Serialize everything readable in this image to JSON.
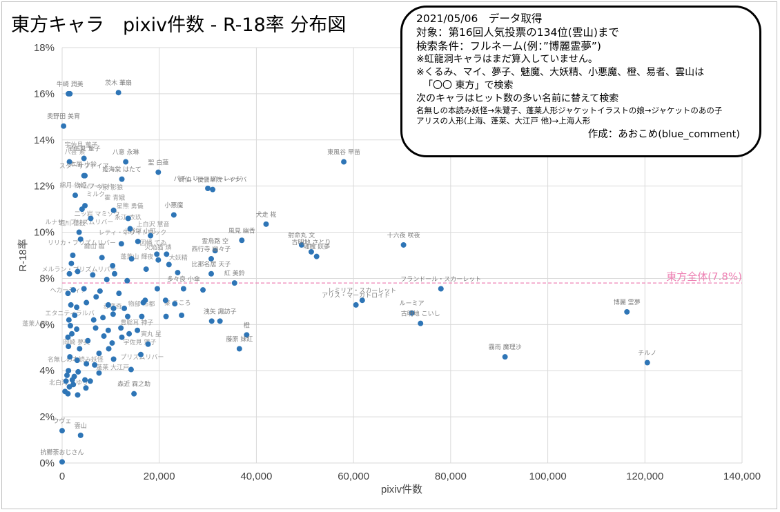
{
  "chart_data": {
    "type": "scatter",
    "title": "東方キャラ　pixiv件数 - R-18率 分布図",
    "xlabel": "pixiv件数",
    "ylabel": "R-18率",
    "xlim": [
      0,
      140000
    ],
    "ylim": [
      0,
      18
    ],
    "x_ticks": [
      "0",
      "20,000",
      "40,000",
      "60,000",
      "80,000",
      "100,000",
      "120,000",
      "140,000"
    ],
    "y_ticks": [
      "0%",
      "2%",
      "4%",
      "6%",
      "8%",
      "10%",
      "12%",
      "14%",
      "16%",
      "18%"
    ],
    "grid": true,
    "reference_line": {
      "label": "東方全体(7.8%)",
      "value": 7.8,
      "color": "#ee82b4"
    },
    "point_color": "#2e75b6",
    "labeled_points": [
      {
        "label": "牛崎 潤美",
        "x": 1600,
        "y": 16.0,
        "color": "#ff0000"
      },
      {
        "label": "茨木 華扇",
        "x": 11600,
        "y": 16.05,
        "color": "#ff0000"
      },
      {
        "label": "奥野田 美宵",
        "x": 300,
        "y": 14.6,
        "color": "#7f7f7f"
      },
      {
        "label": "東風谷 早苗",
        "x": 58000,
        "y": 13.05,
        "color": "#7f7f7f"
      },
      {
        "label": "聖 白蓮",
        "x": 19800,
        "y": 12.6,
        "color": "#7f7f7f"
      },
      {
        "label": "八意 永琳",
        "x": 13100,
        "y": 13.05,
        "color": "#7f7f7f"
      },
      {
        "label": "宇佐見 董子",
        "x": 4500,
        "y": 13.2,
        "color": "#7f7f7f"
      },
      {
        "label": "姫海棠 はたて",
        "x": 12300,
        "y": 12.3,
        "color": "#7f7f7f"
      },
      {
        "label": "スターサファイア",
        "x": 4500,
        "y": 12.45,
        "color": "#7f7f7f"
      },
      {
        "label": "鈴仙・優曇華院・イナバ",
        "x": 31000,
        "y": 11.85,
        "color": "#7f7f7f"
      },
      {
        "label": "パチュリー・ノーレッジ",
        "x": 30000,
        "y": 11.9,
        "color": "#7f7f7f"
      },
      {
        "label": "小悪魔",
        "x": 23000,
        "y": 10.75,
        "color": "#7f7f7f"
      },
      {
        "label": "犬走 椛",
        "x": 42000,
        "y": 10.35,
        "color": "#7f7f7f"
      },
      {
        "label": "十六夜 咲夜",
        "x": 70300,
        "y": 9.45,
        "color": "#7f7f7f"
      },
      {
        "label": "風見 幽香",
        "x": 37000,
        "y": 9.65,
        "color": "#7f7f7f"
      },
      {
        "label": "射命丸 文",
        "x": 49300,
        "y": 9.45,
        "color": "#7f7f7f"
      },
      {
        "label": "古明地 さとり",
        "x": 51300,
        "y": 9.15,
        "color": "#7f7f7f"
      },
      {
        "label": "魂魄 妖夢",
        "x": 52400,
        "y": 8.95,
        "color": "#7f7f7f"
      },
      {
        "label": "西行寺 幽々子",
        "x": 30700,
        "y": 8.85,
        "color": "#7f7f7f"
      },
      {
        "label": "霊烏路 空",
        "x": 31500,
        "y": 9.2,
        "color": "#7f7f7f"
      },
      {
        "label": "比那名居 天子",
        "x": 30700,
        "y": 8.2,
        "color": "#7f7f7f"
      },
      {
        "label": "紅 美鈴",
        "x": 35500,
        "y": 7.8,
        "color": "#7f7f7f"
      },
      {
        "label": "フランドール・スカーレット",
        "x": 78000,
        "y": 7.55,
        "color": "#7f7f7f"
      },
      {
        "label": "レミリア・スカーレット",
        "x": 61800,
        "y": 7.05,
        "color": "#7f7f7f"
      },
      {
        "label": "アリス・マーガトロイド",
        "x": 60500,
        "y": 6.85,
        "color": "#7f7f7f"
      },
      {
        "label": "ルーミア",
        "x": 72000,
        "y": 6.5,
        "color": "#7f7f7f"
      },
      {
        "label": "古明地 こいし",
        "x": 73800,
        "y": 6.05,
        "color": "#7f7f7f"
      },
      {
        "label": "博麗 霊夢",
        "x": 116300,
        "y": 6.55,
        "color": "#2e75b6"
      },
      {
        "label": "霧雨 魔理沙",
        "x": 91200,
        "y": 4.6,
        "color": "#7f7f7f"
      },
      {
        "label": "チルノ",
        "x": 120500,
        "y": 4.35,
        "color": "#2e75b6"
      },
      {
        "label": "橙",
        "x": 38000,
        "y": 5.55,
        "color": "#7f7f7f"
      },
      {
        "label": "藤原 妹紅",
        "x": 36500,
        "y": 4.95,
        "color": "#7f7f7f"
      },
      {
        "label": "洩矢 諏訪子",
        "x": 32500,
        "y": 6.15,
        "color": "#7f7f7f"
      },
      {
        "label": "多々良 小傘",
        "x": 25000,
        "y": 7.55,
        "color": "#7f7f7f"
      },
      {
        "label": "森近 霖之助",
        "x": 14800,
        "y": 3.0,
        "color": "#7f7f7f"
      },
      {
        "label": "ウヴェ",
        "x": 0,
        "y": 1.4,
        "color": "#7f7f7f"
      },
      {
        "label": "雲山",
        "x": 3800,
        "y": 1.2,
        "color": "#7f7f7f"
      },
      {
        "label": "抗鬱荼おじさん",
        "x": 0,
        "y": 0.05,
        "color": "#7f7f7f"
      }
    ],
    "unlabeled_points": [
      {
        "x": 1300,
        "y": 16.0
      },
      {
        "x": 1500,
        "y": 13.05
      },
      {
        "x": 4700,
        "y": 12.45
      },
      {
        "x": 2700,
        "y": 11.6
      },
      {
        "x": 4100,
        "y": 11.0
      },
      {
        "x": 4700,
        "y": 11.15
      },
      {
        "x": 10600,
        "y": 10.95
      },
      {
        "x": 14000,
        "y": 10.15
      },
      {
        "x": 13600,
        "y": 10.6
      },
      {
        "x": 18200,
        "y": 9.85
      },
      {
        "x": 3500,
        "y": 10.0
      },
      {
        "x": 3800,
        "y": 9.7
      },
      {
        "x": 5900,
        "y": 10.6
      },
      {
        "x": 12200,
        "y": 9.5
      },
      {
        "x": 15600,
        "y": 9.6
      },
      {
        "x": 19500,
        "y": 9.05
      },
      {
        "x": 21500,
        "y": 9.05
      },
      {
        "x": 19800,
        "y": 8.8
      },
      {
        "x": 22000,
        "y": 8.6
      },
      {
        "x": 23800,
        "y": 8.25
      },
      {
        "x": 17300,
        "y": 8.4
      },
      {
        "x": 14300,
        "y": 8.85
      },
      {
        "x": 8200,
        "y": 8.9
      },
      {
        "x": 10400,
        "y": 8.55
      },
      {
        "x": 2200,
        "y": 9.0
      },
      {
        "x": 1900,
        "y": 8.65
      },
      {
        "x": 3200,
        "y": 8.3
      },
      {
        "x": 1500,
        "y": 8.2
      },
      {
        "x": 6300,
        "y": 8.15
      },
      {
        "x": 10800,
        "y": 8.2
      },
      {
        "x": 9200,
        "y": 7.95
      },
      {
        "x": 13400,
        "y": 7.9
      },
      {
        "x": 2300,
        "y": 7.5
      },
      {
        "x": 1200,
        "y": 7.35
      },
      {
        "x": 4500,
        "y": 7.55
      },
      {
        "x": 7000,
        "y": 7.2
      },
      {
        "x": 7800,
        "y": 7.45
      },
      {
        "x": 11700,
        "y": 7.35
      },
      {
        "x": 17100,
        "y": 7.05
      },
      {
        "x": 19600,
        "y": 7.55
      },
      {
        "x": 21300,
        "y": 7.05
      },
      {
        "x": 23200,
        "y": 6.9
      },
      {
        "x": 29000,
        "y": 7.5
      },
      {
        "x": 1800,
        "y": 6.85
      },
      {
        "x": 3000,
        "y": 6.75
      },
      {
        "x": 5000,
        "y": 6.95
      },
      {
        "x": 9500,
        "y": 6.85
      },
      {
        "x": 10600,
        "y": 6.7
      },
      {
        "x": 12800,
        "y": 6.7
      },
      {
        "x": 16700,
        "y": 6.95
      },
      {
        "x": 1400,
        "y": 6.2
      },
      {
        "x": 2600,
        "y": 6.4
      },
      {
        "x": 6500,
        "y": 6.2
      },
      {
        "x": 8400,
        "y": 6.3
      },
      {
        "x": 10500,
        "y": 6.45
      },
      {
        "x": 13500,
        "y": 6.35
      },
      {
        "x": 16400,
        "y": 6.35
      },
      {
        "x": 21400,
        "y": 6.35
      },
      {
        "x": 24600,
        "y": 6.4
      },
      {
        "x": 30800,
        "y": 6.15
      },
      {
        "x": 1700,
        "y": 5.95
      },
      {
        "x": 3000,
        "y": 5.8
      },
      {
        "x": 6900,
        "y": 5.85
      },
      {
        "x": 9500,
        "y": 5.75
      },
      {
        "x": 12100,
        "y": 5.85
      },
      {
        "x": 15500,
        "y": 5.75
      },
      {
        "x": 1200,
        "y": 5.45
      },
      {
        "x": 2000,
        "y": 5.6
      },
      {
        "x": 5300,
        "y": 5.3
      },
      {
        "x": 8600,
        "y": 5.5
      },
      {
        "x": 10300,
        "y": 5.2
      },
      {
        "x": 12300,
        "y": 5.45
      },
      {
        "x": 13800,
        "y": 5.6
      },
      {
        "x": 17700,
        "y": 5.15
      },
      {
        "x": 1300,
        "y": 5.05
      },
      {
        "x": 3600,
        "y": 4.95
      },
      {
        "x": 7600,
        "y": 4.75
      },
      {
        "x": 9600,
        "y": 4.95
      },
      {
        "x": 10600,
        "y": 4.5
      },
      {
        "x": 16200,
        "y": 4.7
      },
      {
        "x": 1600,
        "y": 4.6
      },
      {
        "x": 3100,
        "y": 4.45
      },
      {
        "x": 5000,
        "y": 4.3
      },
      {
        "x": 6700,
        "y": 4.25
      },
      {
        "x": 14200,
        "y": 4.05
      },
      {
        "x": 1300,
        "y": 4.0
      },
      {
        "x": 2500,
        "y": 3.75
      },
      {
        "x": 3300,
        "y": 3.95
      },
      {
        "x": 4700,
        "y": 3.6
      },
      {
        "x": 5800,
        "y": 3.55
      },
      {
        "x": 7600,
        "y": 3.9
      },
      {
        "x": 800,
        "y": 3.55
      },
      {
        "x": 1500,
        "y": 3.3
      },
      {
        "x": 2300,
        "y": 3.4
      },
      {
        "x": 600,
        "y": 3.1
      },
      {
        "x": 1200,
        "y": 3.0
      },
      {
        "x": 3200,
        "y": 2.95
      },
      {
        "x": 4900,
        "y": 3.25
      },
      {
        "x": 2100,
        "y": 3.6
      },
      {
        "x": 1000,
        "y": 3.8
      }
    ],
    "faint_labels": [
      {
        "text": "宇佐見 菫子",
        "x": 500,
        "y": 13.7
      },
      {
        "text": "八雲 紫",
        "x": 500,
        "y": 13.4
      },
      {
        "text": "本居 小鈴",
        "x": 1600,
        "y": 12.85
      },
      {
        "text": "綿月 依姫",
        "x": -500,
        "y": 11.95
      },
      {
        "text": "ネムノ",
        "x": 3000,
        "y": 11.9
      },
      {
        "text": "ワールド",
        "x": 5300,
        "y": 11.9
      },
      {
        "text": "今泉 影狼",
        "x": 7000,
        "y": 11.85
      },
      {
        "text": "ミルク",
        "x": 5000,
        "y": 11.55
      },
      {
        "text": "霍 青娥",
        "x": 8700,
        "y": 11.4
      },
      {
        "text": "星熊 勇儀",
        "x": 11200,
        "y": 11.05
      },
      {
        "text": "二ッ岩 マミゾウ",
        "x": 2500,
        "y": 10.7
      },
      {
        "text": "永江 衣玖",
        "x": 10800,
        "y": 10.55
      },
      {
        "text": "ルナサ・プリズムリバー",
        "x": -3500,
        "y": 10.35
      },
      {
        "text": "堀川 雷鼓",
        "x": -700,
        "y": 10.3
      },
      {
        "text": "上白沢 慧音",
        "x": 15300,
        "y": 10.25
      },
      {
        "text": "因幡 てゐ",
        "x": 16000,
        "y": 9.45
      },
      {
        "text": "レティ・ホワイトロック",
        "x": 7500,
        "y": 9.9
      },
      {
        "text": "小野塚 小町",
        "x": 12500,
        "y": 9.95
      },
      {
        "text": "リリカ・プリズムリバー",
        "x": -3000,
        "y": 9.45
      },
      {
        "text": "鍵山 雛",
        "x": 4500,
        "y": 9.3
      },
      {
        "text": "火焔猫 燐",
        "x": 17000,
        "y": 9.25
      },
      {
        "text": "蓬莱山 輝夜",
        "x": 12000,
        "y": 8.85
      },
      {
        "text": "大妖精",
        "x": 22000,
        "y": 8.8
      },
      {
        "text": "メルラン・プリズムリバー",
        "x": -4200,
        "y": 8.3
      },
      {
        "text": "エタニティラルバ",
        "x": -3500,
        "y": 6.4
      },
      {
        "text": "蓬莱人形",
        "x": -8200,
        "y": 5.95
      },
      {
        "text": "岡崎 夢美",
        "x": 200,
        "y": 5.15
      },
      {
        "text": "豊聡耳 神子",
        "x": 12000,
        "y": 6.0
      },
      {
        "text": "宇佐見 蓮子",
        "x": 12600,
        "y": 5.15
      },
      {
        "text": "寅丸 星",
        "x": 16200,
        "y": 5.5
      },
      {
        "text": "蓬莱 大江戸",
        "x": 7000,
        "y": 4.05
      },
      {
        "text": "北白河 ちゆり",
        "x": -2700,
        "y": 3.4
      },
      {
        "text": "物部 布都",
        "x": 13600,
        "y": 6.8
      },
      {
        "text": "秦 こころ",
        "x": 21000,
        "y": 6.85
      },
      {
        "text": "赤蛮奇",
        "x": 8500,
        "y": 6.7
      },
      {
        "text": "名無しの本読み妖怪",
        "x": -3000,
        "y": 4.4
      },
      {
        "text": "プリズムリバー",
        "x": 12000,
        "y": 4.5
      },
      {
        "text": "ヘカーティア",
        "x": -2500,
        "y": 7.4
      }
    ],
    "notes": {
      "date_line": "2021/05/06　データ取得",
      "target_line": "対象：第16回人気投票の134位(雲山)まで",
      "search_line": "検索条件：フルネーム(例：”博麗霊夢”)",
      "note1": "※虹龍洞キャラはまだ算入していません。",
      "note2": "※くるみ、マイ、夢子、魅魔、大妖精、小悪魔、橙、易者、雲山は",
      "note3": "「〇〇 東方」で検索",
      "note4": "次のキャラはヒット数の多い名前に替えて検索",
      "note5": "名無しの本読み妖怪→朱鷺子、蓬莱人形ジャケットイラストの娘→ジャケットのあの子",
      "note6": "アリスの人形(上海、蓬莱、大江戸 他)→上海人形",
      "author": "作成：あおこめ(blue_comment)"
    }
  }
}
